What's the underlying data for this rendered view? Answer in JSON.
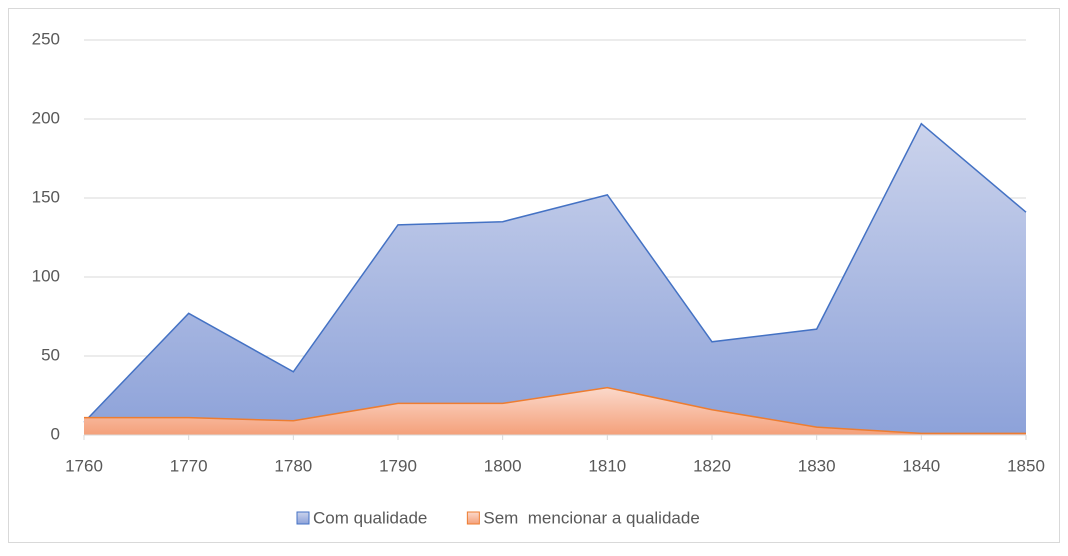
{
  "chart_data": {
    "type": "area",
    "x": [
      1760,
      1770,
      1780,
      1790,
      1800,
      1810,
      1820,
      1830,
      1840,
      1850
    ],
    "xlim": [
      1760,
      1850
    ],
    "xticks": [
      1760,
      1770,
      1780,
      1790,
      1800,
      1810,
      1820,
      1830,
      1840,
      1850
    ],
    "ylim": [
      0,
      250
    ],
    "yticks": [
      0,
      50,
      100,
      150,
      200,
      250
    ],
    "grid": true,
    "legend": "bottom",
    "series": [
      {
        "name": "Com qualidade",
        "color": "#4472c4",
        "values": [
          8,
          77,
          40,
          133,
          135,
          152,
          59,
          67,
          197,
          141
        ]
      },
      {
        "name": "Sem  mencionar a qualidade",
        "color": "#ed7d31",
        "values": [
          11,
          11,
          9,
          20,
          20,
          30,
          16,
          5,
          1,
          1
        ]
      }
    ]
  }
}
